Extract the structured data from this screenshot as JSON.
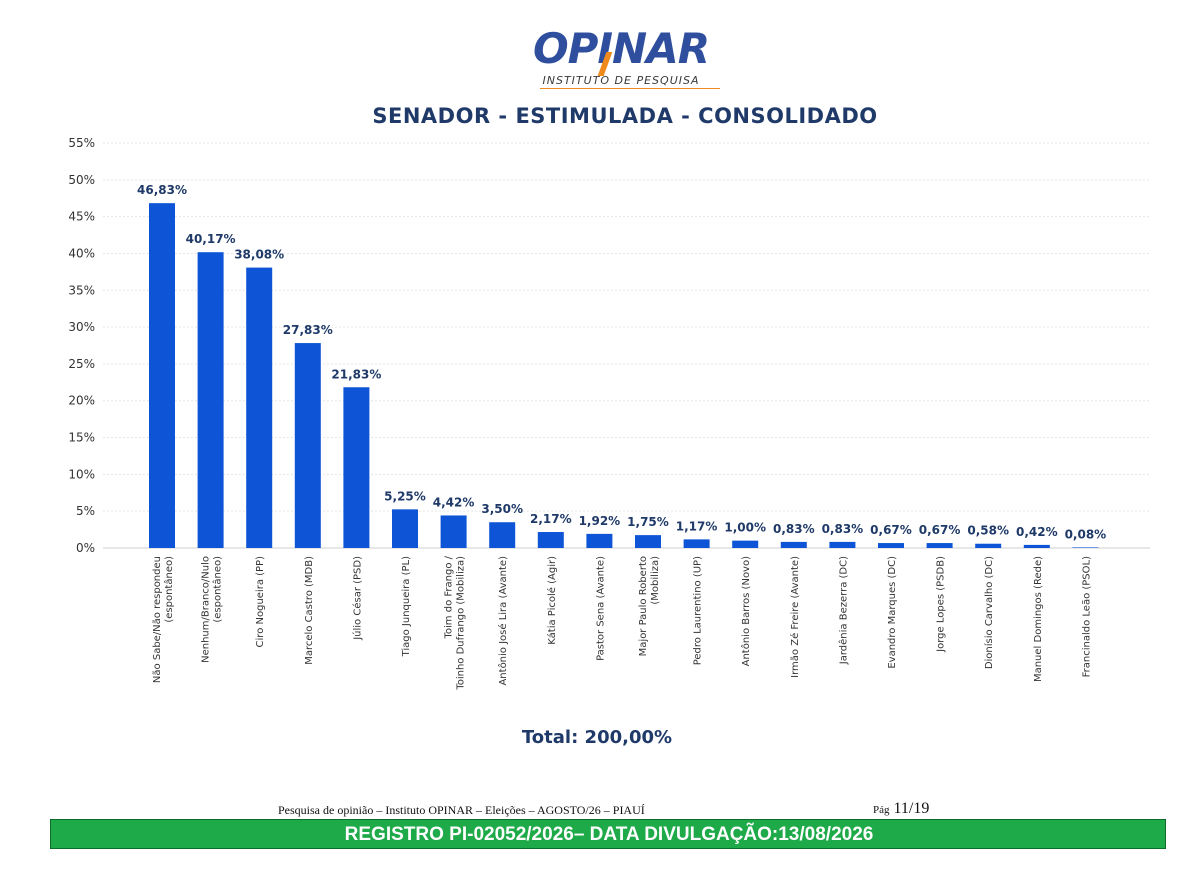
{
  "header": {
    "brand": "OPINAR",
    "subtitle": "INSTITUTO DE PESQUISA",
    "colors": {
      "brand_blue": "#2f4f9e",
      "accent_orange": "#f08a1c"
    }
  },
  "chart_data": {
    "type": "bar",
    "title": "SENADOR - ESTIMULADA - CONSOLIDADO",
    "xlabel": "",
    "ylabel": "",
    "ylim": [
      0,
      55
    ],
    "yticks": [
      "0%",
      "5%",
      "10%",
      "15%",
      "20%",
      "25%",
      "30%",
      "35%",
      "40%",
      "45%",
      "50%",
      "55%"
    ],
    "grid": true,
    "bar_color": "#0d55d6",
    "categories": [
      [
        "Não Sabe/Não respondeu",
        "(espontâneo)"
      ],
      [
        "Nenhum/Branco/Nulo",
        "(espontâneo)"
      ],
      [
        "Ciro Nogueira (PP)"
      ],
      [
        "Marcelo Castro (MDB)"
      ],
      [
        "Júlio César (PSD)"
      ],
      [
        "Tiago Junqueira (PL)"
      ],
      [
        "Toim do Frango /",
        "Toinho Dufrango (Mobiliza)"
      ],
      [
        "Antônio José Lira (Avante)"
      ],
      [
        "Kátia Picolé (Agir)"
      ],
      [
        "Pastor Sena (Avante)"
      ],
      [
        "Major Paulo Roberto",
        "(Mobiliza)"
      ],
      [
        "Pedro Laurentino (UP)"
      ],
      [
        "Antônio Barros (Novo)"
      ],
      [
        "Irmão Zé Freire (Avante)"
      ],
      [
        "Jardênia Bezerra (DC)"
      ],
      [
        "Evandro Marques (DC)"
      ],
      [
        "Jorge Lopes (PSDB)"
      ],
      [
        "Dionísio Carvalho (DC)"
      ],
      [
        "Manuel Domingos (Rede)"
      ],
      [
        "Francinaldo Leão (PSOL)"
      ]
    ],
    "values": [
      46.83,
      40.17,
      38.08,
      27.83,
      21.83,
      5.25,
      4.42,
      3.5,
      2.17,
      1.92,
      1.75,
      1.17,
      1.0,
      0.83,
      0.83,
      0.67,
      0.67,
      0.58,
      0.42,
      0.08
    ],
    "value_labels": [
      "46,83%",
      "40,17%",
      "38,08%",
      "27,83%",
      "21,83%",
      "5,25%",
      "4,42%",
      "3,50%",
      "2,17%",
      "1,92%",
      "1,75%",
      "1,17%",
      "1,00%",
      "0,83%",
      "0,83%",
      "0,67%",
      "0,67%",
      "0,58%",
      "0,42%",
      "0,08%"
    ],
    "total_label": "Total: 200,00%"
  },
  "footer": {
    "survey_text": "Pesquisa de opinião – Instituto OPINAR – Eleições – AGOSTO/26 – PIAUÍ",
    "page_prefix": "Pág",
    "page_number": "11/19",
    "registration": "REGISTRO PI-02052/2026– DATA DIVULGAÇÃO:13/08/2026",
    "band_color": "#1faa49"
  }
}
